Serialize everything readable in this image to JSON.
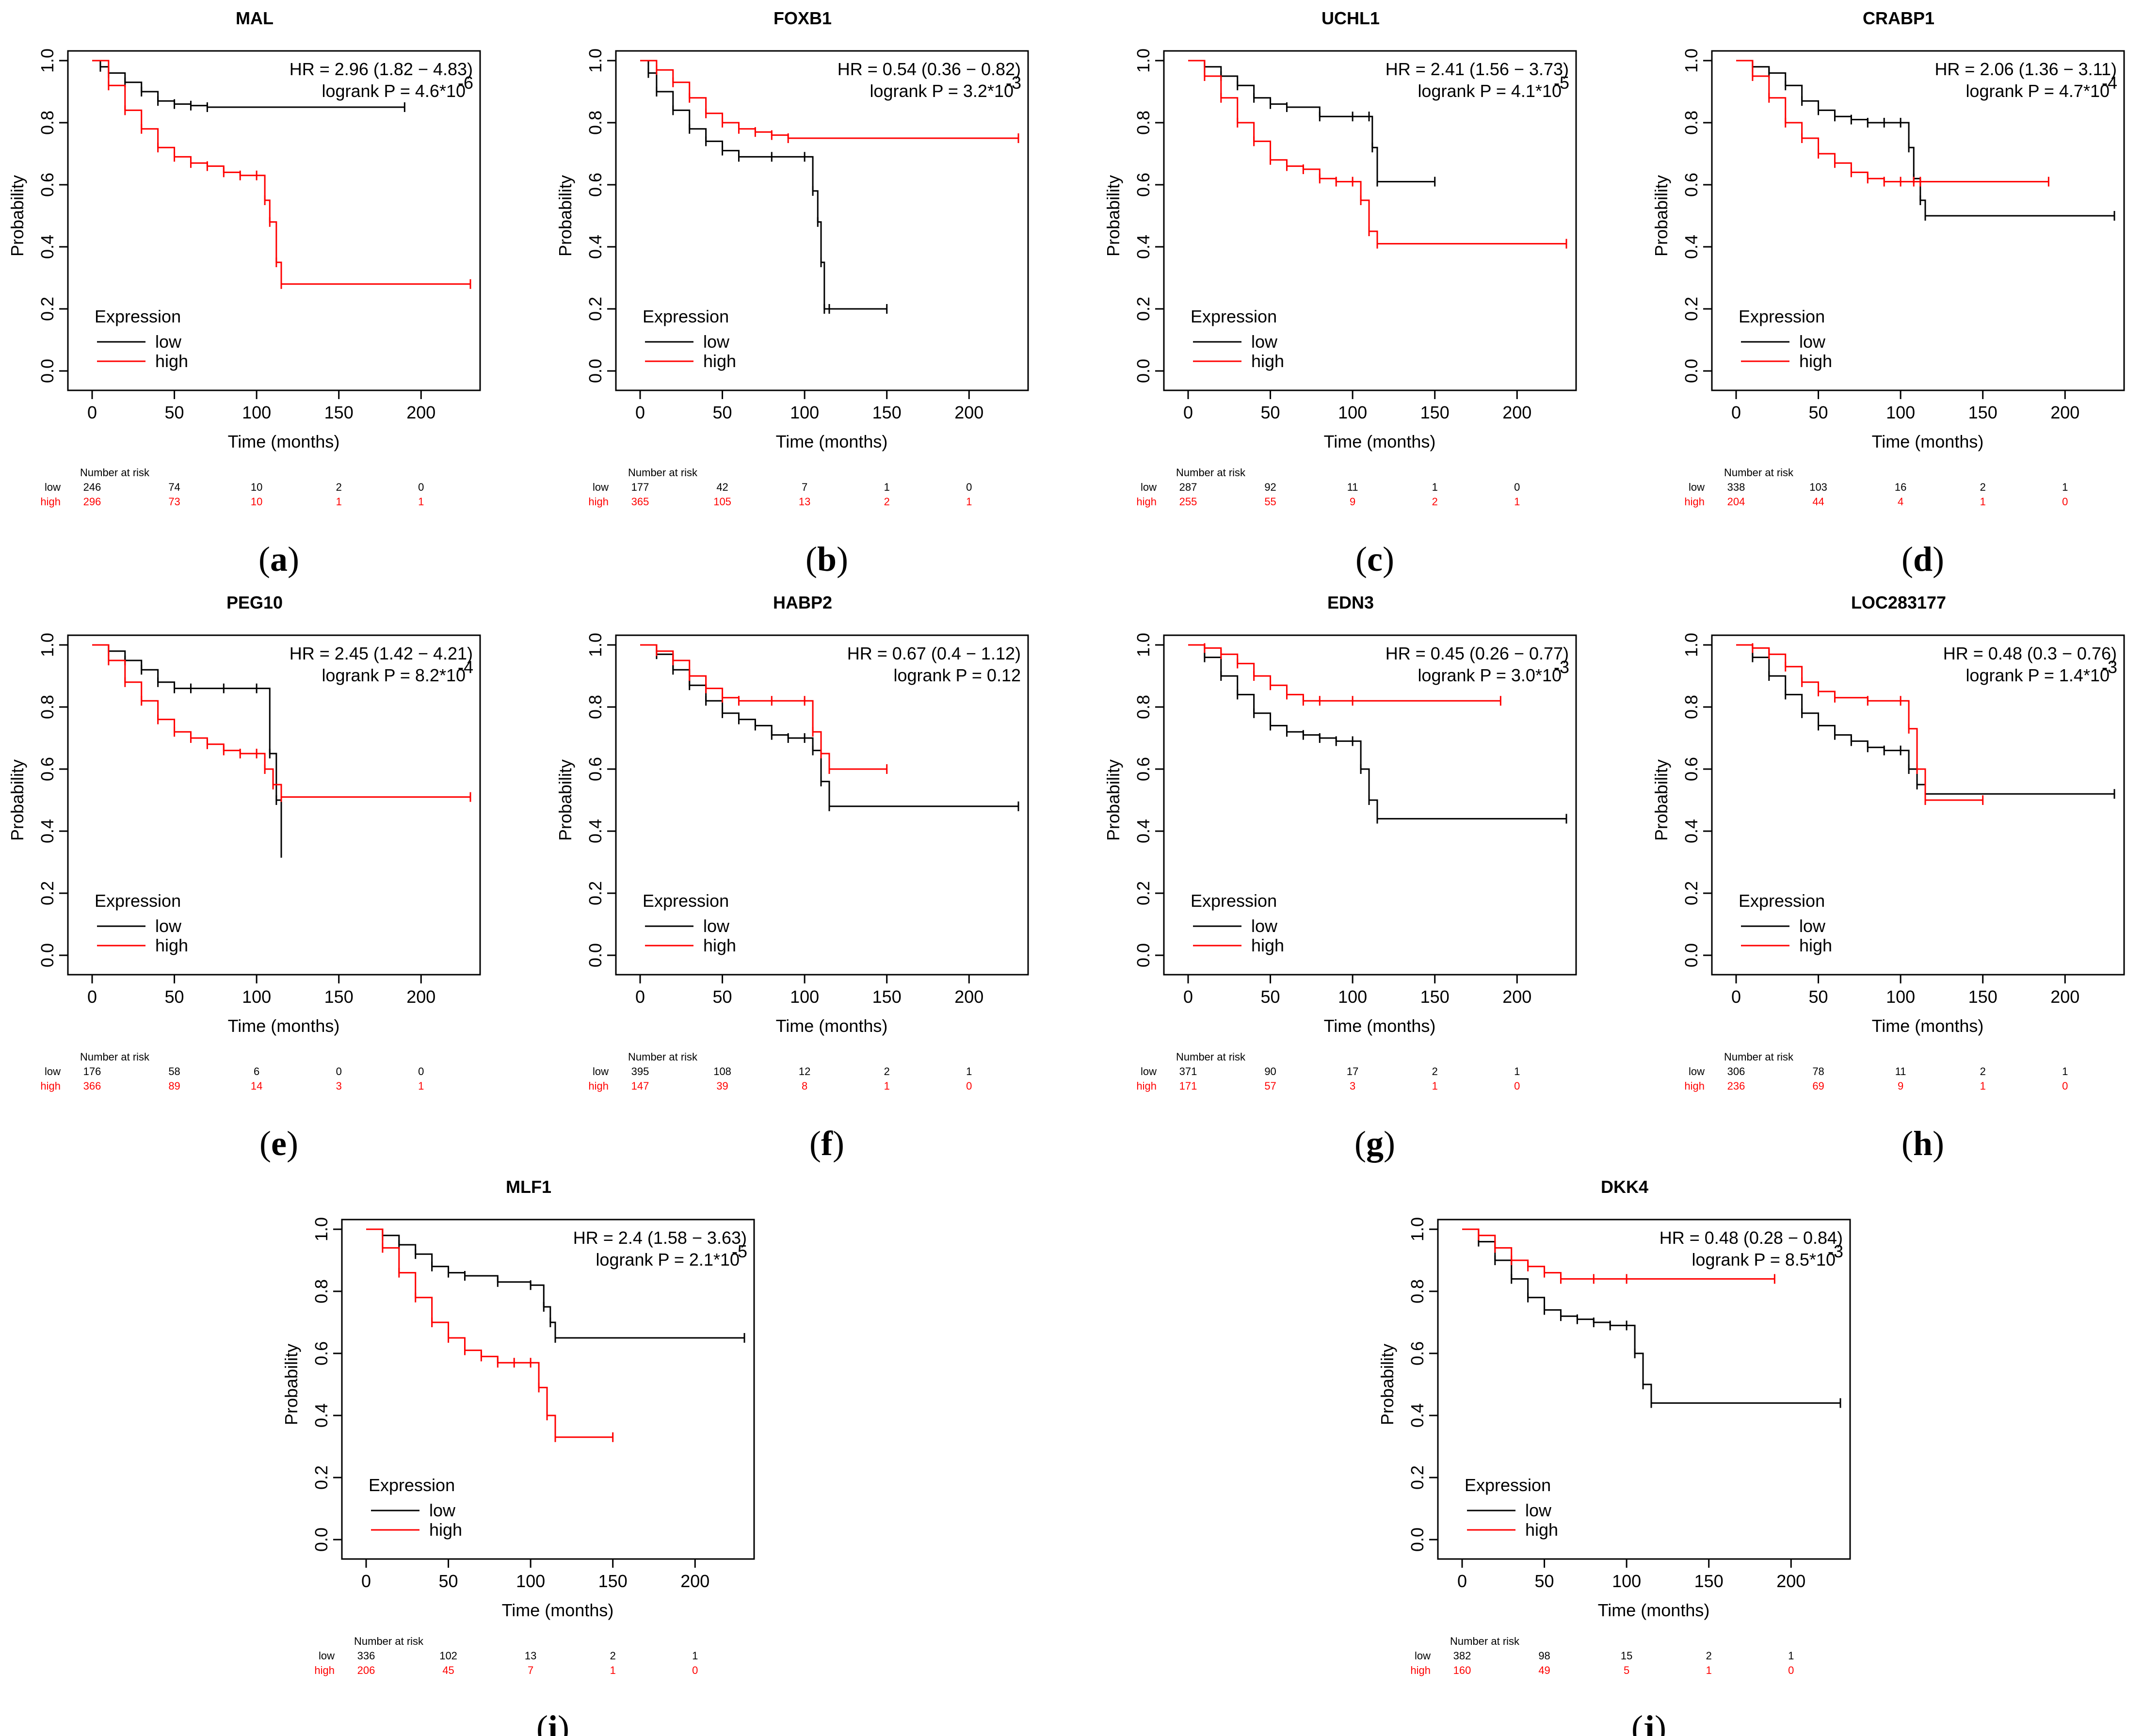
{
  "colors": {
    "low": "#000000",
    "high": "#ff0000"
  },
  "axis_labels": {
    "x": "Time (months)",
    "y": "Probability"
  },
  "legend": {
    "title": "Expression",
    "low": "low",
    "high": "high"
  },
  "risk": {
    "header": "Number at risk",
    "low_label": "low",
    "high_label": "high"
  },
  "x_ticks": [
    "0",
    "50",
    "100",
    "150",
    "200"
  ],
  "y_ticks": [
    "0.0",
    "0.2",
    "0.4",
    "0.6",
    "0.8",
    "1.0"
  ],
  "chart_data": [
    {
      "type": "line",
      "panel": "a",
      "title": "MAL",
      "hr_text": "HR = 2.96 (1.82 − 4.83)",
      "p_prefix": "logrank P = 4.6*10",
      "p_exp": "-6",
      "xlim": [
        0,
        230
      ],
      "ylim": [
        0,
        1
      ],
      "series": [
        {
          "name": "low",
          "x": [
            0,
            5,
            10,
            20,
            30,
            40,
            50,
            60,
            70,
            190
          ],
          "y": [
            1,
            0.98,
            0.96,
            0.93,
            0.9,
            0.87,
            0.86,
            0.855,
            0.85,
            0.85
          ]
        },
        {
          "name": "high",
          "x": [
            0,
            10,
            20,
            30,
            40,
            50,
            60,
            70,
            80,
            90,
            100,
            105,
            108,
            112,
            115,
            230
          ],
          "y": [
            1,
            0.92,
            0.84,
            0.78,
            0.72,
            0.69,
            0.67,
            0.66,
            0.64,
            0.63,
            0.63,
            0.55,
            0.48,
            0.35,
            0.28,
            0.28
          ]
        }
      ],
      "risk": {
        "low": [
          "246",
          "74",
          "10",
          "2",
          "0"
        ],
        "high": [
          "296",
          "73",
          "10",
          "1",
          "1"
        ]
      }
    },
    {
      "type": "line",
      "panel": "b",
      "title": "FOXB1",
      "hr_text": "HR = 0.54 (0.36 − 0.82)",
      "p_prefix": "logrank P = 3.2*10",
      "p_exp": "-3",
      "xlim": [
        0,
        230
      ],
      "ylim": [
        0,
        1
      ],
      "series": [
        {
          "name": "low",
          "x": [
            0,
            5,
            10,
            20,
            30,
            40,
            50,
            60,
            80,
            100,
            105,
            108,
            110,
            112,
            115,
            150
          ],
          "y": [
            1,
            0.96,
            0.9,
            0.84,
            0.78,
            0.74,
            0.71,
            0.69,
            0.69,
            0.69,
            0.58,
            0.48,
            0.35,
            0.2,
            0.2,
            0.2
          ]
        },
        {
          "name": "high",
          "x": [
            0,
            10,
            20,
            30,
            40,
            50,
            60,
            70,
            80,
            90,
            230
          ],
          "y": [
            1,
            0.97,
            0.93,
            0.88,
            0.83,
            0.8,
            0.78,
            0.77,
            0.76,
            0.75,
            0.75
          ]
        }
      ],
      "risk": {
        "low": [
          "177",
          "42",
          "7",
          "1",
          "0"
        ],
        "high": [
          "365",
          "105",
          "13",
          "2",
          "1"
        ]
      }
    },
    {
      "type": "line",
      "panel": "c",
      "title": "UCHL1",
      "hr_text": "HR = 2.41 (1.56 − 3.73)",
      "p_prefix": "logrank P = 4.1*10",
      "p_exp": "-5",
      "xlim": [
        0,
        230
      ],
      "ylim": [
        0,
        1
      ],
      "series": [
        {
          "name": "low",
          "x": [
            0,
            10,
            20,
            30,
            40,
            50,
            60,
            80,
            100,
            110,
            112,
            115,
            150
          ],
          "y": [
            1,
            0.98,
            0.95,
            0.92,
            0.88,
            0.86,
            0.85,
            0.82,
            0.82,
            0.82,
            0.72,
            0.61,
            0.61
          ]
        },
        {
          "name": "high",
          "x": [
            0,
            10,
            20,
            30,
            40,
            50,
            60,
            70,
            80,
            90,
            100,
            105,
            110,
            115,
            230
          ],
          "y": [
            1,
            0.95,
            0.88,
            0.8,
            0.74,
            0.68,
            0.66,
            0.65,
            0.62,
            0.61,
            0.61,
            0.55,
            0.45,
            0.41,
            0.41
          ]
        }
      ],
      "risk": {
        "low": [
          "287",
          "92",
          "11",
          "1",
          "0"
        ],
        "high": [
          "255",
          "55",
          "9",
          "2",
          "1"
        ]
      }
    },
    {
      "type": "line",
      "panel": "d",
      "title": "CRABP1",
      "hr_text": "HR = 2.06 (1.36 − 3.11)",
      "p_prefix": "logrank P = 4.7*10",
      "p_exp": "-4",
      "xlim": [
        0,
        230
      ],
      "ylim": [
        0,
        1
      ],
      "series": [
        {
          "name": "low",
          "x": [
            0,
            10,
            20,
            30,
            40,
            50,
            60,
            70,
            80,
            90,
            100,
            105,
            108,
            112,
            115,
            230
          ],
          "y": [
            1,
            0.98,
            0.96,
            0.92,
            0.87,
            0.84,
            0.82,
            0.81,
            0.8,
            0.8,
            0.8,
            0.72,
            0.62,
            0.55,
            0.5,
            0.5
          ]
        },
        {
          "name": "high",
          "x": [
            0,
            10,
            20,
            30,
            40,
            50,
            60,
            70,
            80,
            90,
            100,
            108,
            112,
            190
          ],
          "y": [
            1,
            0.95,
            0.88,
            0.8,
            0.75,
            0.7,
            0.67,
            0.64,
            0.62,
            0.61,
            0.61,
            0.61,
            0.61,
            0.61
          ]
        }
      ],
      "risk": {
        "low": [
          "338",
          "103",
          "16",
          "2",
          "1"
        ],
        "high": [
          "204",
          "44",
          "4",
          "1",
          "0"
        ]
      }
    },
    {
      "type": "line",
      "panel": "e",
      "title": "PEG10",
      "hr_text": "HR = 2.45 (1.42 − 4.21)",
      "p_prefix": "logrank P = 8.2*10",
      "p_exp": "-4",
      "xlim": [
        0,
        230
      ],
      "ylim": [
        0,
        1
      ],
      "series": [
        {
          "name": "low",
          "x": [
            0,
            10,
            20,
            30,
            40,
            50,
            60,
            80,
            100,
            108,
            112,
            115
          ],
          "y": [
            1,
            0.98,
            0.95,
            0.92,
            0.88,
            0.86,
            0.86,
            0.86,
            0.86,
            0.65,
            0.5,
            0.33
          ]
        },
        {
          "name": "high",
          "x": [
            0,
            10,
            20,
            30,
            40,
            50,
            60,
            70,
            80,
            90,
            100,
            105,
            110,
            115,
            230
          ],
          "y": [
            1,
            0.95,
            0.88,
            0.82,
            0.76,
            0.72,
            0.7,
            0.68,
            0.66,
            0.65,
            0.65,
            0.6,
            0.55,
            0.51,
            0.51
          ]
        }
      ],
      "risk": {
        "low": [
          "176",
          "58",
          "6",
          "0",
          "0"
        ],
        "high": [
          "366",
          "89",
          "14",
          "3",
          "1"
        ]
      }
    },
    {
      "type": "line",
      "panel": "f",
      "title": "HABP2",
      "hr_text": "HR = 0.67 (0.4 − 1.12)",
      "p_prefix": "logrank P = 0.12",
      "p_exp": "",
      "xlim": [
        0,
        230
      ],
      "ylim": [
        0,
        1
      ],
      "series": [
        {
          "name": "low",
          "x": [
            0,
            10,
            20,
            30,
            40,
            50,
            60,
            70,
            80,
            90,
            100,
            105,
            110,
            115,
            230
          ],
          "y": [
            1,
            0.97,
            0.92,
            0.87,
            0.82,
            0.78,
            0.76,
            0.74,
            0.71,
            0.7,
            0.7,
            0.66,
            0.56,
            0.48,
            0.48
          ]
        },
        {
          "name": "high",
          "x": [
            0,
            10,
            20,
            30,
            40,
            50,
            60,
            80,
            100,
            105,
            110,
            115,
            150
          ],
          "y": [
            1,
            0.98,
            0.95,
            0.9,
            0.86,
            0.83,
            0.82,
            0.82,
            0.82,
            0.72,
            0.65,
            0.6,
            0.6
          ]
        }
      ],
      "risk": {
        "low": [
          "395",
          "108",
          "12",
          "2",
          "1"
        ],
        "high": [
          "147",
          "39",
          "8",
          "1",
          "0"
        ]
      }
    },
    {
      "type": "line",
      "panel": "g",
      "title": "EDN3",
      "hr_text": "HR = 0.45 (0.26 − 0.77)",
      "p_prefix": "logrank P = 3.0*10",
      "p_exp": "-3",
      "xlim": [
        0,
        230
      ],
      "ylim": [
        0,
        1
      ],
      "series": [
        {
          "name": "low",
          "x": [
            0,
            10,
            20,
            30,
            40,
            50,
            60,
            70,
            80,
            90,
            100,
            105,
            110,
            115,
            230
          ],
          "y": [
            1,
            0.96,
            0.9,
            0.84,
            0.78,
            0.74,
            0.72,
            0.71,
            0.7,
            0.69,
            0.69,
            0.6,
            0.5,
            0.44,
            0.44
          ]
        },
        {
          "name": "high",
          "x": [
            0,
            10,
            20,
            30,
            40,
            50,
            60,
            70,
            80,
            100,
            190
          ],
          "y": [
            1,
            0.99,
            0.97,
            0.94,
            0.9,
            0.87,
            0.84,
            0.82,
            0.82,
            0.82,
            0.82
          ]
        }
      ],
      "risk": {
        "low": [
          "371",
          "90",
          "17",
          "2",
          "1"
        ],
        "high": [
          "171",
          "57",
          "3",
          "1",
          "0"
        ]
      }
    },
    {
      "type": "line",
      "panel": "h",
      "title": "LOC283177",
      "hr_text": "HR = 0.48 (0.3 − 0.76)",
      "p_prefix": "logrank P = 1.4*10",
      "p_exp": "-3",
      "xlim": [
        0,
        230
      ],
      "ylim": [
        0,
        1
      ],
      "series": [
        {
          "name": "low",
          "x": [
            0,
            10,
            20,
            30,
            40,
            50,
            60,
            70,
            80,
            90,
            100,
            105,
            110,
            115,
            230
          ],
          "y": [
            1,
            0.96,
            0.9,
            0.84,
            0.78,
            0.74,
            0.71,
            0.69,
            0.67,
            0.66,
            0.66,
            0.6,
            0.55,
            0.52,
            0.52
          ]
        },
        {
          "name": "high",
          "x": [
            0,
            10,
            20,
            30,
            40,
            50,
            60,
            80,
            100,
            105,
            110,
            115,
            150
          ],
          "y": [
            1,
            0.99,
            0.97,
            0.93,
            0.88,
            0.85,
            0.83,
            0.82,
            0.82,
            0.73,
            0.6,
            0.5,
            0.5
          ]
        }
      ],
      "risk": {
        "low": [
          "306",
          "78",
          "11",
          "2",
          "1"
        ],
        "high": [
          "236",
          "69",
          "9",
          "1",
          "0"
        ]
      }
    },
    {
      "type": "line",
      "panel": "i",
      "title": "MLF1",
      "hr_text": "HR = 2.4 (1.58 − 3.63)",
      "p_prefix": "logrank P = 2.1*10",
      "p_exp": "-5",
      "xlim": [
        0,
        230
      ],
      "ylim": [
        0,
        1
      ],
      "series": [
        {
          "name": "low",
          "x": [
            0,
            10,
            20,
            30,
            40,
            50,
            60,
            80,
            100,
            108,
            112,
            115,
            230
          ],
          "y": [
            1,
            0.98,
            0.95,
            0.92,
            0.88,
            0.86,
            0.85,
            0.83,
            0.82,
            0.75,
            0.7,
            0.65,
            0.65
          ]
        },
        {
          "name": "high",
          "x": [
            0,
            10,
            20,
            30,
            40,
            50,
            60,
            70,
            80,
            90,
            100,
            105,
            110,
            115,
            150
          ],
          "y": [
            1,
            0.94,
            0.86,
            0.78,
            0.7,
            0.65,
            0.61,
            0.59,
            0.57,
            0.57,
            0.57,
            0.49,
            0.4,
            0.33,
            0.33
          ]
        }
      ],
      "risk": {
        "low": [
          "336",
          "102",
          "13",
          "2",
          "1"
        ],
        "high": [
          "206",
          "45",
          "7",
          "1",
          "0"
        ]
      }
    },
    {
      "type": "line",
      "panel": "j",
      "title": "DKK4",
      "hr_text": "HR = 0.48 (0.28 − 0.84)",
      "p_prefix": "logrank P = 8.5*10",
      "p_exp": "-3",
      "xlim": [
        0,
        230
      ],
      "ylim": [
        0,
        1
      ],
      "series": [
        {
          "name": "low",
          "x": [
            0,
            10,
            20,
            30,
            40,
            50,
            60,
            70,
            80,
            90,
            100,
            105,
            110,
            115,
            230
          ],
          "y": [
            1,
            0.96,
            0.9,
            0.84,
            0.78,
            0.74,
            0.72,
            0.71,
            0.7,
            0.69,
            0.69,
            0.6,
            0.5,
            0.44,
            0.44
          ]
        },
        {
          "name": "high",
          "x": [
            0,
            10,
            20,
            30,
            40,
            50,
            60,
            80,
            100,
            190
          ],
          "y": [
            1,
            0.98,
            0.94,
            0.9,
            0.88,
            0.86,
            0.84,
            0.84,
            0.84,
            0.84
          ]
        }
      ],
      "risk": {
        "low": [
          "382",
          "98",
          "15",
          "2",
          "1"
        ],
        "high": [
          "160",
          "49",
          "5",
          "1",
          "0"
        ]
      }
    }
  ]
}
